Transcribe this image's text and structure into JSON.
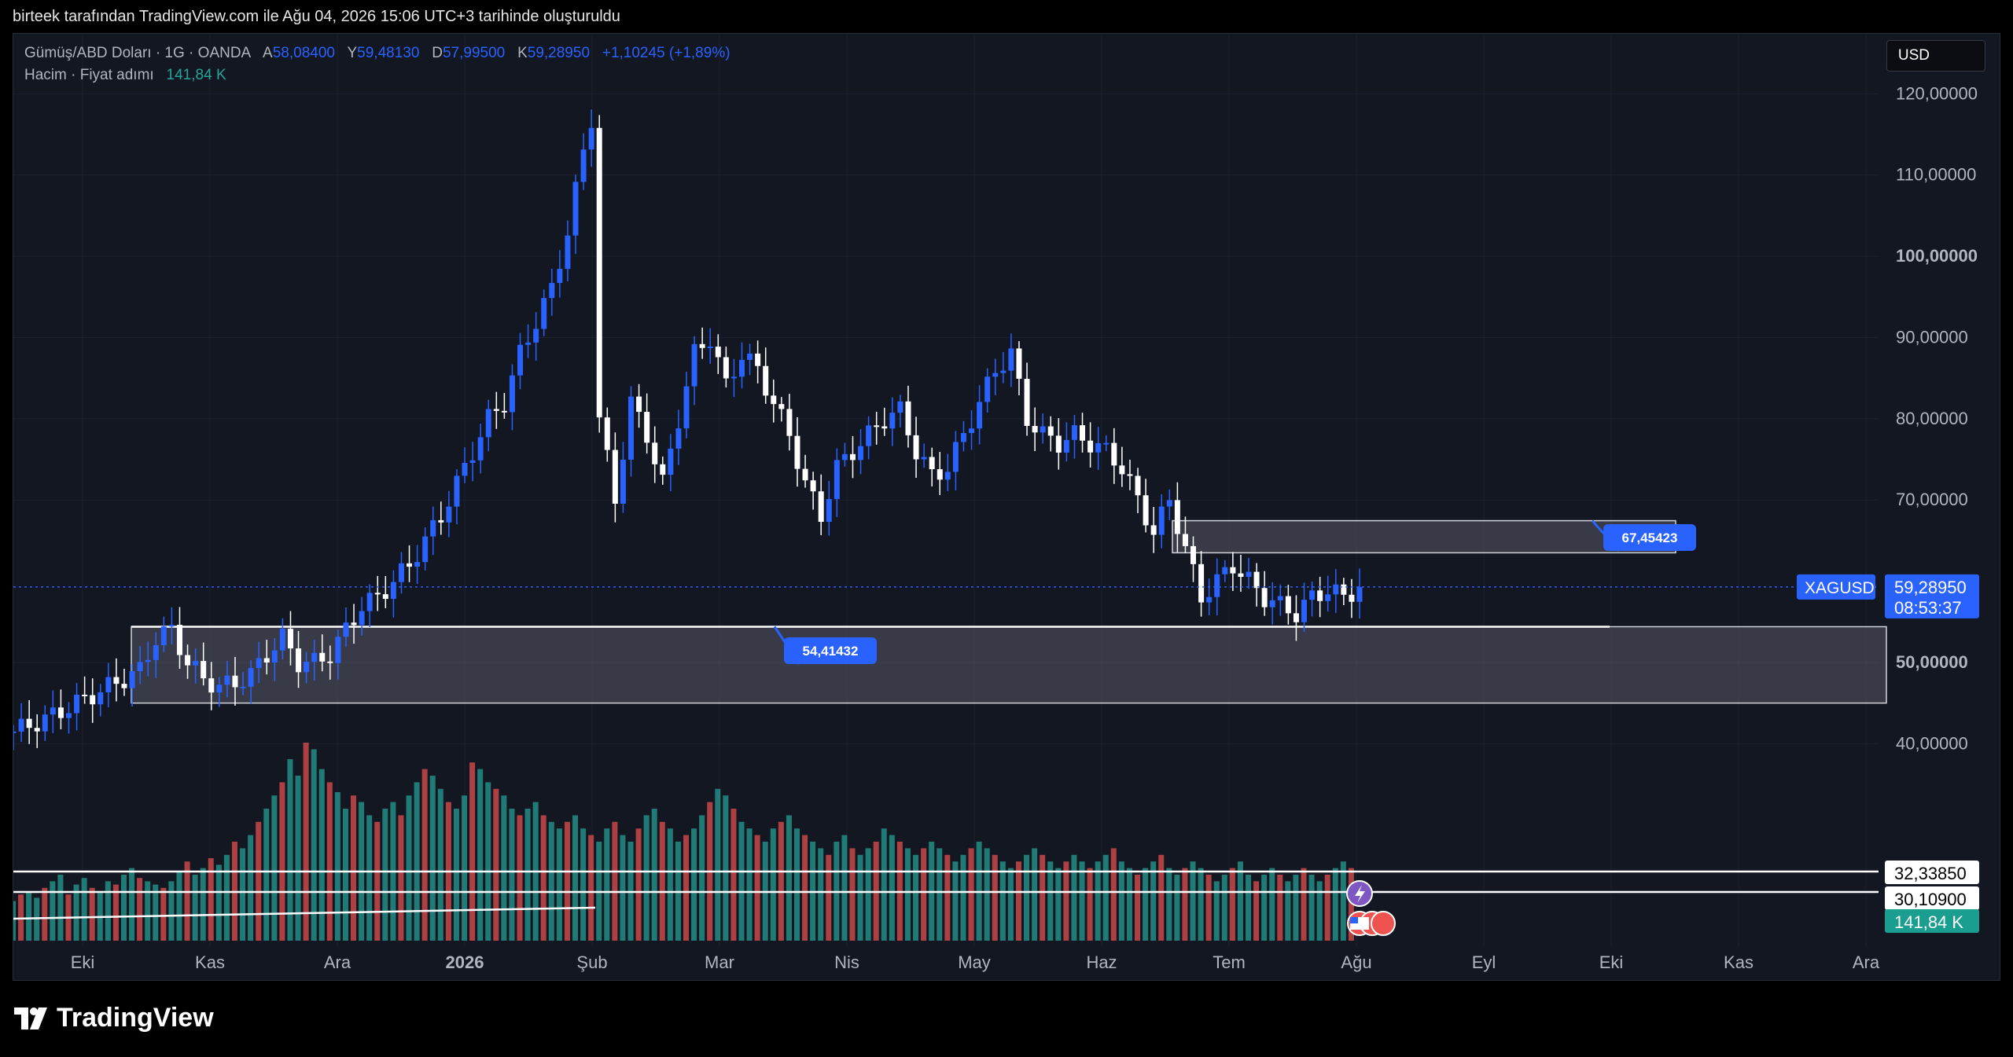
{
  "caption": "birteek tarafından TradingView.com ile Ağu 04, 2026 15:06 UTC+3 tarihinde oluşturuldu",
  "legend": {
    "symbol": "Gümüş/ABD Doları · 1G · OANDA",
    "open_label": "A",
    "open": "58,08400",
    "high_label": "Y",
    "high": "59,48130",
    "low_label": "D",
    "low": "57,99500",
    "close_label": "K",
    "close": "59,28950",
    "change": "+1,10245 (+1,89%)",
    "volume_label": "Hacim · Fiyat adımı",
    "volume": "141,84 K"
  },
  "currency": "USD",
  "brand": "TradingView",
  "colors": {
    "background": "#131722",
    "up_candle": "#2962ff",
    "down_candle": "#ffffff",
    "volume_up": "#26a69a",
    "volume_down": "#ef5350",
    "accent": "#2962ff"
  },
  "chart_data": {
    "type": "candlestick",
    "symbol": "XAGUSD",
    "y_ticks": [
      "120,00000",
      "110,00000",
      "100,00000",
      "90,00000",
      "80,00000",
      "70,00000",
      "50,00000",
      "40,00000"
    ],
    "ylim": [
      38,
      124
    ],
    "x_ticks": [
      "Eki",
      "Kas",
      "Ara",
      "2026",
      "Şub",
      "Mar",
      "Nis",
      "May",
      "Haz",
      "Tem",
      "Ağu",
      "Eyl",
      "Eki",
      "Kas",
      "Ara"
    ],
    "price_label": {
      "symbol": "XAGUSD",
      "price": "59,28950",
      "countdown": "08:53:37"
    },
    "level_labels": [
      "32,33850",
      "30,10900"
    ],
    "volume_label": "141,84 K",
    "annotations": [
      {
        "text": "54,41432",
        "price": 54.41
      },
      {
        "text": "67,45423",
        "price": 67.45
      }
    ],
    "zones": [
      {
        "from": 45,
        "to": 54.4
      },
      {
        "from": 63.5,
        "to": 67.45
      }
    ],
    "close_path": [
      [
        0,
        41.5
      ],
      [
        4,
        43
      ],
      [
        8,
        45
      ],
      [
        12,
        47
      ],
      [
        16,
        49
      ],
      [
        18,
        53
      ],
      [
        20,
        54
      ],
      [
        22,
        50
      ],
      [
        24,
        48
      ],
      [
        26,
        47
      ],
      [
        28,
        47.5
      ],
      [
        30,
        48.5
      ],
      [
        32,
        51
      ],
      [
        34,
        53
      ],
      [
        36,
        50
      ],
      [
        38,
        50
      ],
      [
        40,
        51
      ],
      [
        42,
        54
      ],
      [
        44,
        57
      ],
      [
        46,
        58
      ],
      [
        48,
        60
      ],
      [
        50,
        62
      ],
      [
        52,
        65
      ],
      [
        54,
        68
      ],
      [
        56,
        72
      ],
      [
        58,
        76
      ],
      [
        60,
        80
      ],
      [
        62,
        82
      ],
      [
        64,
        88
      ],
      [
        66,
        92
      ],
      [
        68,
        96
      ],
      [
        70,
        103
      ],
      [
        72,
        113
      ],
      [
        73,
        117
      ],
      [
        74,
        80
      ],
      [
        75,
        75
      ],
      [
        76,
        70
      ],
      [
        78,
        82
      ],
      [
        80,
        78
      ],
      [
        82,
        72
      ],
      [
        84,
        80
      ],
      [
        86,
        88
      ],
      [
        88,
        90
      ],
      [
        90,
        84
      ],
      [
        92,
        88
      ],
      [
        94,
        86
      ],
      [
        96,
        82
      ],
      [
        98,
        78
      ],
      [
        100,
        72
      ],
      [
        102,
        68
      ],
      [
        104,
        74
      ],
      [
        106,
        76
      ],
      [
        108,
        78
      ],
      [
        110,
        80
      ],
      [
        112,
        81
      ],
      [
        114,
        76
      ],
      [
        116,
        73
      ],
      [
        118,
        74
      ],
      [
        120,
        78
      ],
      [
        122,
        82
      ],
      [
        124,
        86
      ],
      [
        126,
        88
      ],
      [
        128,
        80
      ],
      [
        130,
        78
      ],
      [
        132,
        77
      ],
      [
        134,
        78
      ],
      [
        136,
        77
      ],
      [
        138,
        76
      ],
      [
        140,
        74
      ],
      [
        141,
        72
      ],
      [
        142,
        70
      ],
      [
        144,
        66
      ],
      [
        146,
        70
      ],
      [
        148,
        64
      ],
      [
        150,
        58
      ],
      [
        152,
        60
      ],
      [
        154,
        62
      ],
      [
        156,
        60
      ],
      [
        158,
        58
      ],
      [
        160,
        57
      ],
      [
        162,
        56
      ],
      [
        164,
        58
      ],
      [
        166,
        59
      ],
      [
        168,
        58
      ],
      [
        170,
        59.3
      ]
    ],
    "volume": [
      12,
      14,
      15,
      13,
      16,
      18,
      20,
      14,
      17,
      19,
      16,
      15,
      18,
      17,
      20,
      22,
      19,
      18,
      17,
      16,
      18,
      21,
      24,
      20,
      22,
      25,
      23,
      26,
      30,
      28,
      32,
      36,
      40,
      44,
      48,
      55,
      50,
      60,
      58,
      52,
      48,
      45,
      40,
      44,
      42,
      38,
      36,
      40,
      42,
      38,
      44,
      48,
      52,
      50,
      46,
      42,
      40,
      44,
      54,
      52,
      48,
      46,
      44,
      40,
      38,
      40,
      42,
      38,
      36,
      34,
      36,
      38,
      34,
      32,
      30,
      34,
      36,
      32,
      30,
      34,
      38,
      40,
      36,
      34,
      30,
      32,
      34,
      38,
      42,
      46,
      44,
      40,
      36,
      34,
      32,
      30,
      34,
      36,
      38,
      34,
      32,
      30,
      28,
      26,
      30,
      32,
      28,
      26,
      28,
      30,
      34,
      32,
      30,
      28,
      26,
      28,
      30,
      28,
      26,
      24,
      26,
      28,
      30,
      28,
      26,
      24,
      22,
      24,
      26,
      28,
      26,
      24,
      22,
      24,
      26,
      24,
      22,
      24,
      26,
      28,
      24,
      22,
      20,
      22,
      24,
      26,
      22,
      20,
      22,
      24,
      22,
      20,
      18,
      20,
      22,
      24,
      20,
      18,
      20,
      22,
      20,
      18,
      20,
      22,
      20,
      18,
      20,
      22,
      24,
      22
    ]
  }
}
